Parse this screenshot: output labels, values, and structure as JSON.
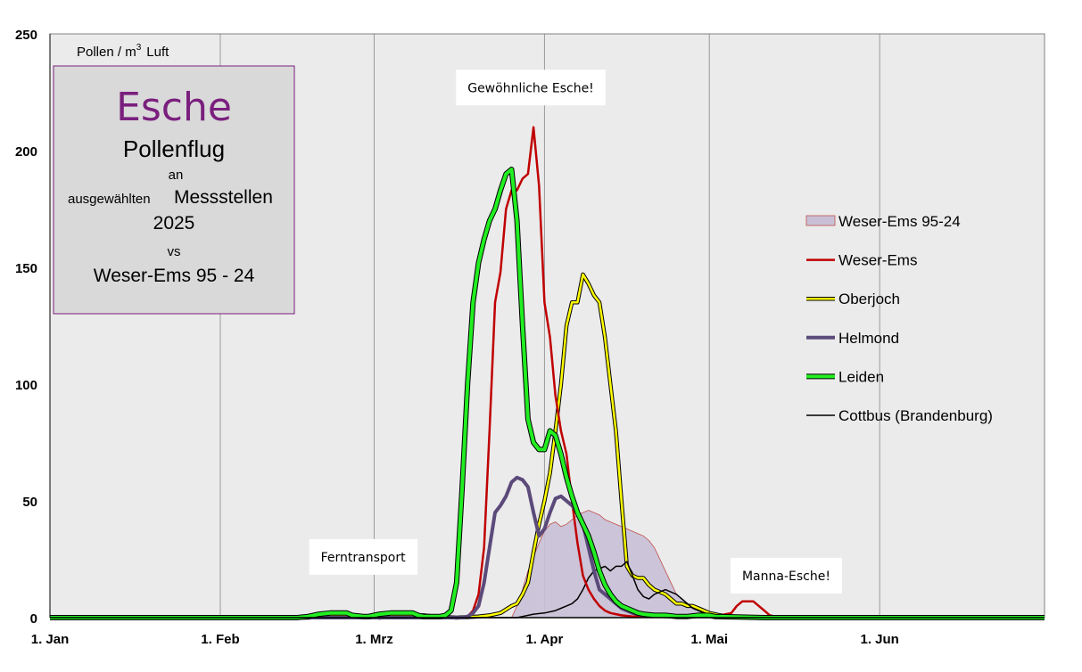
{
  "chart_data": {
    "type": "line",
    "title": "Esche",
    "subtitle_lines": [
      "Pollenflug",
      "an",
      "ausgewählten",
      "Messstellen",
      "2025",
      "vs",
      "Weser-Ems 95 - 24"
    ],
    "ylabel_prefix": "Pollen / m",
    "ylabel_sup": "3",
    "ylabel_suffix": "Luft",
    "ylim": [
      0,
      250
    ],
    "xlim": [
      0,
      181
    ],
    "yticks": [
      0,
      50,
      100,
      150,
      200,
      250
    ],
    "xticks": [
      {
        "day": 0,
        "label": "1. Jan"
      },
      {
        "day": 31,
        "label": "1. Feb"
      },
      {
        "day": 59,
        "label": "1. Mrz"
      },
      {
        "day": 90,
        "label": "1. Apr"
      },
      {
        "day": 120,
        "label": "1. Mai"
      },
      {
        "day": 151,
        "label": "1. Jun"
      }
    ],
    "annotations": [
      {
        "text": "Gewöhnliche Esche!",
        "day": 87.5,
        "value": 227
      },
      {
        "text": "Ferntransport",
        "day": 57,
        "value": 26
      },
      {
        "text": "Manna-Esche!",
        "day": 134,
        "value": 18
      }
    ],
    "series": [
      {
        "name": "Weser-Ems 95-24",
        "style": "area",
        "color": "#c9c0d6",
        "stroke": "#c0504d",
        "points": [
          [
            84,
            0
          ],
          [
            85,
            5
          ],
          [
            86,
            12
          ],
          [
            87,
            20
          ],
          [
            88,
            26
          ],
          [
            89,
            32
          ],
          [
            90,
            37
          ],
          [
            91,
            40
          ],
          [
            92,
            41
          ],
          [
            93,
            39
          ],
          [
            94,
            40
          ],
          [
            95,
            42
          ],
          [
            96,
            44
          ],
          [
            97,
            45
          ],
          [
            98,
            46
          ],
          [
            99,
            45
          ],
          [
            100,
            44
          ],
          [
            101,
            42
          ],
          [
            102,
            41
          ],
          [
            103,
            40
          ],
          [
            104,
            39
          ],
          [
            105,
            38
          ],
          [
            106,
            37
          ],
          [
            107,
            36
          ],
          [
            108,
            35
          ],
          [
            109,
            33
          ],
          [
            110,
            30
          ],
          [
            111,
            25
          ],
          [
            112,
            20
          ],
          [
            113,
            15
          ],
          [
            114,
            10
          ],
          [
            115,
            8
          ],
          [
            116,
            6
          ],
          [
            117,
            5
          ],
          [
            118,
            4
          ],
          [
            119,
            3
          ],
          [
            120,
            2
          ],
          [
            122,
            1.5
          ],
          [
            124,
            1
          ],
          [
            126,
            1
          ],
          [
            130,
            0.5
          ],
          [
            135,
            0.5
          ],
          [
            140,
            0.3
          ],
          [
            150,
            0
          ]
        ]
      },
      {
        "name": "Weser-Ems",
        "style": "line",
        "color": "#c00000",
        "width": 2.5,
        "points": [
          [
            0,
            0
          ],
          [
            60,
            0
          ],
          [
            65,
            0
          ],
          [
            70,
            0
          ],
          [
            75,
            0
          ],
          [
            76,
            0.5
          ],
          [
            77,
            3
          ],
          [
            78,
            10
          ],
          [
            79,
            30
          ],
          [
            80,
            80
          ],
          [
            81,
            135
          ],
          [
            82,
            148
          ],
          [
            83,
            175
          ],
          [
            84,
            183
          ],
          [
            85,
            183
          ],
          [
            86,
            188
          ],
          [
            87,
            190
          ],
          [
            88,
            210
          ],
          [
            89,
            185
          ],
          [
            90,
            135
          ],
          [
            91,
            120
          ],
          [
            92,
            95
          ],
          [
            93,
            80
          ],
          [
            94,
            70
          ],
          [
            95,
            50
          ],
          [
            96,
            32
          ],
          [
            97,
            18
          ],
          [
            98,
            12
          ],
          [
            99,
            8
          ],
          [
            100,
            5
          ],
          [
            101,
            3
          ],
          [
            102,
            2
          ],
          [
            103,
            1.5
          ],
          [
            104,
            1
          ],
          [
            106,
            0.5
          ],
          [
            110,
            0.5
          ],
          [
            115,
            0.5
          ],
          [
            120,
            1
          ],
          [
            122,
            1
          ],
          [
            124,
            2
          ],
          [
            125,
            5
          ],
          [
            126,
            7
          ],
          [
            127,
            7
          ],
          [
            128,
            7
          ],
          [
            129,
            5
          ],
          [
            130,
            3
          ],
          [
            131,
            1
          ],
          [
            132,
            0.5
          ],
          [
            135,
            0
          ],
          [
            181,
            0
          ]
        ]
      },
      {
        "name": "Oberjoch",
        "style": "line",
        "color": "#ffff00",
        "outline": "#000000",
        "width": 2.5,
        "points": [
          [
            0,
            0
          ],
          [
            47,
            0
          ],
          [
            50,
            0.5
          ],
          [
            56,
            0.5
          ],
          [
            58,
            0.5
          ],
          [
            60,
            0
          ],
          [
            62,
            0.5
          ],
          [
            66,
            1
          ],
          [
            68,
            1
          ],
          [
            70,
            0.5
          ],
          [
            74,
            0
          ],
          [
            78,
            0.5
          ],
          [
            80,
            1
          ],
          [
            82,
            2
          ],
          [
            84,
            5
          ],
          [
            85,
            6
          ],
          [
            86,
            10
          ],
          [
            87,
            15
          ],
          [
            88,
            28
          ],
          [
            89,
            40
          ],
          [
            90,
            50
          ],
          [
            91,
            62
          ],
          [
            92,
            80
          ],
          [
            93,
            100
          ],
          [
            94,
            125
          ],
          [
            95,
            135
          ],
          [
            96,
            135
          ],
          [
            97,
            147
          ],
          [
            98,
            143
          ],
          [
            99,
            138
          ],
          [
            100,
            135
          ],
          [
            101,
            120
          ],
          [
            102,
            100
          ],
          [
            103,
            80
          ],
          [
            104,
            50
          ],
          [
            105,
            22
          ],
          [
            106,
            18
          ],
          [
            107,
            17
          ],
          [
            108,
            17
          ],
          [
            109,
            14
          ],
          [
            110,
            12
          ],
          [
            111,
            11
          ],
          [
            112,
            10
          ],
          [
            113,
            8
          ],
          [
            114,
            6
          ],
          [
            115,
            6
          ],
          [
            116,
            5
          ],
          [
            117,
            5
          ],
          [
            118,
            4
          ],
          [
            119,
            3
          ],
          [
            120,
            2
          ],
          [
            121,
            1.5
          ],
          [
            122,
            1
          ],
          [
            124,
            0.5
          ],
          [
            130,
            0
          ],
          [
            181,
            0
          ]
        ]
      },
      {
        "name": "Helmond",
        "style": "line",
        "color": "#5b4a7a",
        "width": 4,
        "points": [
          [
            0,
            0
          ],
          [
            75,
            0
          ],
          [
            76,
            0.5
          ],
          [
            77,
            2
          ],
          [
            78,
            5
          ],
          [
            79,
            15
          ],
          [
            80,
            30
          ],
          [
            81,
            45
          ],
          [
            82,
            48
          ],
          [
            83,
            52
          ],
          [
            84,
            58
          ],
          [
            85,
            60
          ],
          [
            86,
            59
          ],
          [
            87,
            56
          ],
          [
            88,
            45
          ],
          [
            89,
            35
          ],
          [
            90,
            38
          ],
          [
            91,
            45
          ],
          [
            92,
            51
          ],
          [
            93,
            52
          ],
          [
            94,
            50
          ],
          [
            95,
            48
          ],
          [
            96,
            45
          ],
          [
            97,
            40
          ],
          [
            98,
            30
          ],
          [
            99,
            20
          ],
          [
            100,
            12
          ],
          [
            101,
            10
          ],
          [
            102,
            8
          ],
          [
            103,
            6
          ],
          [
            104,
            4
          ],
          [
            105,
            3
          ],
          [
            106,
            2
          ],
          [
            107,
            1.5
          ],
          [
            108,
            1
          ],
          [
            110,
            1
          ],
          [
            112,
            0.5
          ],
          [
            115,
            0.5
          ],
          [
            120,
            0.5
          ],
          [
            125,
            0.5
          ],
          [
            130,
            0.3
          ],
          [
            140,
            0.2
          ],
          [
            150,
            0.1
          ],
          [
            181,
            0
          ]
        ]
      },
      {
        "name": "Leiden",
        "style": "line",
        "color": "#22ee22",
        "outline": "#000000",
        "width": 4,
        "points": [
          [
            0,
            0
          ],
          [
            14,
            0
          ],
          [
            30,
            0
          ],
          [
            45,
            0
          ],
          [
            47,
            0.5
          ],
          [
            49,
            1.5
          ],
          [
            51,
            2
          ],
          [
            54,
            2
          ],
          [
            55,
            1
          ],
          [
            57,
            0.5
          ],
          [
            58,
            0.5
          ],
          [
            60,
            1.5
          ],
          [
            62,
            2
          ],
          [
            64,
            2
          ],
          [
            66,
            2
          ],
          [
            67,
            1
          ],
          [
            68,
            0.5
          ],
          [
            70,
            0.5
          ],
          [
            71,
            0.5
          ],
          [
            72,
            1
          ],
          [
            73,
            3
          ],
          [
            74,
            15
          ],
          [
            75,
            55
          ],
          [
            76,
            100
          ],
          [
            77,
            135
          ],
          [
            78,
            152
          ],
          [
            79,
            162
          ],
          [
            80,
            170
          ],
          [
            81,
            175
          ],
          [
            82,
            183
          ],
          [
            83,
            190
          ],
          [
            84,
            192
          ],
          [
            85,
            170
          ],
          [
            86,
            125
          ],
          [
            87,
            85
          ],
          [
            88,
            75
          ],
          [
            89,
            72
          ],
          [
            90,
            72
          ],
          [
            91,
            80
          ],
          [
            92,
            78
          ],
          [
            93,
            70
          ],
          [
            94,
            60
          ],
          [
            95,
            52
          ],
          [
            96,
            45
          ],
          [
            97,
            40
          ],
          [
            98,
            35
          ],
          [
            99,
            28
          ],
          [
            100,
            20
          ],
          [
            101,
            14
          ],
          [
            102,
            10
          ],
          [
            103,
            7
          ],
          [
            104,
            5
          ],
          [
            105,
            4
          ],
          [
            106,
            3
          ],
          [
            107,
            2
          ],
          [
            108,
            1.5
          ],
          [
            110,
            1
          ],
          [
            112,
            1
          ],
          [
            114,
            0.5
          ],
          [
            116,
            0.5
          ],
          [
            118,
            1
          ],
          [
            119,
            1
          ],
          [
            120,
            1
          ],
          [
            121,
            0.5
          ],
          [
            125,
            0.3
          ],
          [
            130,
            0
          ],
          [
            181,
            0
          ]
        ]
      },
      {
        "name": "Cottbus (Brandenburg)",
        "style": "line",
        "color": "#000000",
        "width": 1.5,
        "points": [
          [
            0,
            0
          ],
          [
            85,
            0
          ],
          [
            86,
            0.5
          ],
          [
            88,
            1.5
          ],
          [
            90,
            2
          ],
          [
            92,
            3
          ],
          [
            93,
            4
          ],
          [
            94,
            5
          ],
          [
            95,
            6
          ],
          [
            96,
            8
          ],
          [
            97,
            12
          ],
          [
            98,
            17
          ],
          [
            99,
            20
          ],
          [
            100,
            21
          ],
          [
            101,
            22
          ],
          [
            102,
            20
          ],
          [
            103,
            22
          ],
          [
            104,
            22
          ],
          [
            105,
            24
          ],
          [
            106,
            18
          ],
          [
            107,
            12
          ],
          [
            108,
            9
          ],
          [
            109,
            8
          ],
          [
            110,
            10
          ],
          [
            111,
            11
          ],
          [
            112,
            12
          ],
          [
            113,
            11
          ],
          [
            114,
            10
          ],
          [
            115,
            8
          ],
          [
            116,
            6
          ],
          [
            117,
            4
          ],
          [
            118,
            3
          ],
          [
            119,
            2
          ],
          [
            120,
            1.5
          ],
          [
            122,
            1
          ],
          [
            124,
            0.5
          ],
          [
            126,
            0.5
          ],
          [
            130,
            0.5
          ],
          [
            134,
            0.5
          ],
          [
            140,
            0.5
          ],
          [
            150,
            0.3
          ],
          [
            160,
            0
          ],
          [
            181,
            0
          ]
        ]
      }
    ]
  }
}
